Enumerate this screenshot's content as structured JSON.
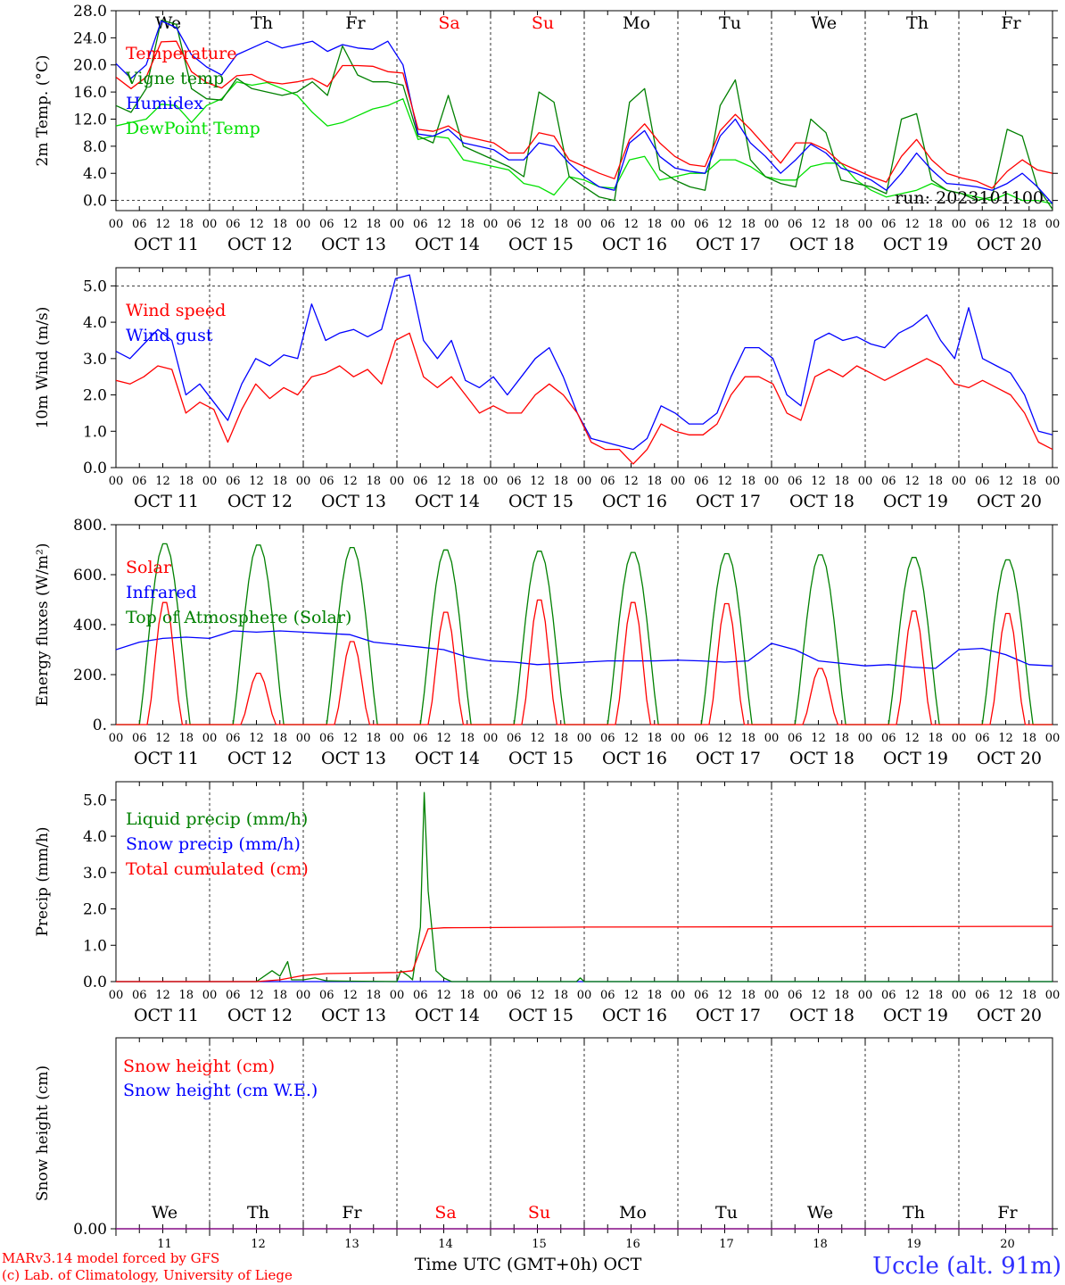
{
  "colors": {
    "red": "#ff0000",
    "dark_green": "#008000",
    "blue": "#0000ff",
    "light_green": "#00e000",
    "purple": "#800080",
    "site_blue": "#3030ff"
  },
  "days": [
    {
      "name": "We",
      "weekend": false,
      "date": "OCT 11",
      "num": "11"
    },
    {
      "name": "Th",
      "weekend": false,
      "date": "OCT 12",
      "num": "12"
    },
    {
      "name": "Fr",
      "weekend": false,
      "date": "OCT 13",
      "num": "13"
    },
    {
      "name": "Sa",
      "weekend": true,
      "date": "OCT 14",
      "num": "14"
    },
    {
      "name": "Su",
      "weekend": true,
      "date": "OCT 15",
      "num": "15"
    },
    {
      "name": "Mo",
      "weekend": false,
      "date": "OCT 16",
      "num": "16"
    },
    {
      "name": "Tu",
      "weekend": false,
      "date": "OCT 17",
      "num": "17"
    },
    {
      "name": "We",
      "weekend": false,
      "date": "OCT 18",
      "num": "18"
    },
    {
      "name": "Th",
      "weekend": false,
      "date": "OCT 19",
      "num": "19"
    },
    {
      "name": "Fr",
      "weekend": false,
      "date": "OCT 20",
      "num": "20"
    }
  ],
  "hour_ticks": [
    "00",
    "06",
    "12",
    "18"
  ],
  "final_hour_tick": "00",
  "chart_data": [
    {
      "type": "line",
      "ylabel": "2m Temp. (°C)",
      "ylim": [
        -1.5,
        28
      ],
      "yticks": [
        "0.0",
        "4.0",
        "8.0",
        "12.0",
        "16.0",
        "20.0",
        "24.0",
        "28.0"
      ],
      "ytick_values": [
        0,
        4,
        8,
        12,
        16,
        20,
        24,
        28
      ],
      "ref_line": 0,
      "annotation": "run: 2023101100",
      "x_unit_hours": 6,
      "series": [
        {
          "name": "Temperature",
          "color": "red",
          "values": [
            18.2,
            16.5,
            18.2,
            23.4,
            23.5,
            19,
            17.4,
            16.6,
            18.4,
            18.6,
            17.5,
            17.2,
            17.5,
            18,
            16.8,
            19.9,
            19.9,
            19.8,
            19,
            18.8,
            10.5,
            10.2,
            11,
            9.5,
            9,
            8.5,
            7,
            7,
            10,
            9.5,
            6,
            5,
            4,
            3.2,
            9,
            11.3,
            8.5,
            6.5,
            5.3,
            5,
            10.3,
            12.7,
            10.5,
            8,
            5.5,
            8.5,
            8.5,
            7.5,
            5.5,
            4.5,
            3.5,
            2.7,
            6.5,
            9,
            6,
            4,
            3.3,
            2.8,
            1.8,
            4.3,
            6,
            4.5,
            4
          ]
        },
        {
          "name": "Vigne temp",
          "color": "dark_green",
          "values": [
            14,
            13,
            16.5,
            26.6,
            26,
            16.5,
            15,
            14.8,
            18,
            16.5,
            16,
            15.5,
            16,
            17.5,
            15.5,
            22.8,
            18.5,
            17.5,
            17.5,
            17,
            9.5,
            8.5,
            15.5,
            8,
            7,
            6,
            5,
            3.5,
            16,
            14.5,
            3.5,
            2,
            0.5,
            0,
            14.5,
            16.5,
            4.5,
            3,
            2,
            1.5,
            14,
            17.8,
            6,
            3.5,
            2.5,
            2,
            12,
            10,
            3,
            2.5,
            2,
            1,
            12,
            12.8,
            3,
            1.5,
            1,
            0,
            0.5,
            10.5,
            9.5,
            2,
            -1.3
          ]
        },
        {
          "name": "Humidex",
          "color": "blue",
          "values": [
            20.2,
            18,
            20,
            26.5,
            25.5,
            21.5,
            19.7,
            18.5,
            21.5,
            22.5,
            23.5,
            22.5,
            23,
            23.5,
            22,
            23,
            22.5,
            22.3,
            23.5,
            20,
            9.8,
            9.5,
            10.5,
            8.5,
            8,
            7.5,
            6,
            6,
            8.5,
            8,
            5.5,
            3.5,
            2,
            1.5,
            8.5,
            10.3,
            6.5,
            4.8,
            4.3,
            4,
            9.5,
            12,
            8.5,
            6.5,
            4,
            6,
            8.3,
            7,
            4.8,
            4,
            3,
            1.5,
            4,
            7,
            4.5,
            2.5,
            2.3,
            2,
            1.5,
            2.5,
            4,
            2,
            -0.5
          ]
        },
        {
          "name": "DewPoint Temp",
          "color": "light_green",
          "values": [
            11,
            11.5,
            12,
            14.2,
            14,
            11.5,
            14,
            15,
            17.5,
            17,
            17.4,
            16.5,
            15.5,
            13,
            11,
            11.5,
            12.5,
            13.5,
            14,
            15,
            9,
            9.5,
            9.2,
            6,
            5.5,
            5,
            4.5,
            2.5,
            2,
            0.8,
            3.5,
            3,
            2,
            1.8,
            6,
            6.5,
            3,
            3.5,
            4,
            4,
            6,
            6,
            5,
            3.5,
            3,
            3,
            5,
            5.5,
            5.5,
            3,
            1.5,
            0.5,
            1,
            1.5,
            2.5,
            1.5,
            1,
            0.5,
            0,
            1,
            0,
            0,
            -0.5
          ]
        }
      ]
    },
    {
      "type": "line",
      "ylabel": "10m Wind (m/s)",
      "ylim": [
        0,
        5.5
      ],
      "yticks": [
        "0.0",
        "1.0",
        "2.0",
        "3.0",
        "4.0",
        "5.0"
      ],
      "ytick_values": [
        0,
        1,
        2,
        3,
        4,
        5
      ],
      "ref_line": 5,
      "x_unit_hours": 6,
      "series": [
        {
          "name": "Wind speed",
          "color": "red",
          "values": [
            2.4,
            2.3,
            2.5,
            2.8,
            2.7,
            1.5,
            1.8,
            1.6,
            0.7,
            1.6,
            2.3,
            1.9,
            2.2,
            2,
            2.5,
            2.6,
            2.8,
            2.5,
            2.7,
            2.3,
            3.5,
            3.7,
            2.5,
            2.2,
            2.5,
            2,
            1.5,
            1.7,
            1.5,
            1.5,
            2,
            2.3,
            2,
            1.5,
            0.7,
            0.5,
            0.5,
            0.1,
            0.5,
            1.2,
            1,
            0.9,
            0.9,
            1.2,
            2,
            2.5,
            2.5,
            2.3,
            1.5,
            1.3,
            2.5,
            2.7,
            2.5,
            2.8,
            2.6,
            2.4,
            2.6,
            2.8,
            3,
            2.8,
            2.3,
            2.2,
            2.4,
            2.2,
            2,
            1.5,
            0.7,
            0.5
          ]
        },
        {
          "name": "Wind gust",
          "color": "blue",
          "values": [
            3.2,
            3,
            3.4,
            3.8,
            3.5,
            2,
            2.3,
            1.8,
            1.3,
            2.3,
            3,
            2.8,
            3.1,
            3,
            4.5,
            3.5,
            3.7,
            3.8,
            3.6,
            3.8,
            5.2,
            5.3,
            3.5,
            3,
            3.5,
            2.4,
            2.2,
            2.5,
            2,
            2.5,
            3,
            3.3,
            2.5,
            1.5,
            0.8,
            0.7,
            0.6,
            0.5,
            0.8,
            1.7,
            1.5,
            1.2,
            1.2,
            1.5,
            2.5,
            3.3,
            3.3,
            3,
            2,
            1.7,
            3.5,
            3.7,
            3.5,
            3.6,
            3.4,
            3.3,
            3.7,
            3.9,
            4.2,
            3.5,
            3,
            4.4,
            3,
            2.8,
            2.6,
            2,
            1,
            0.9
          ]
        }
      ]
    },
    {
      "type": "line",
      "ylabel": "Energy fluxes (W/m²)",
      "ylim": [
        0,
        800
      ],
      "yticks": [
        "0.",
        "200.",
        "400.",
        "600.",
        "800."
      ],
      "ytick_values": [
        0,
        200,
        400,
        600,
        800
      ],
      "ref_line": null,
      "x_unit_hours": 1,
      "series": [
        {
          "name": "Solar",
          "color": "red",
          "peaks": [
            500,
            210,
            340,
            460,
            510,
            500,
            495,
            230,
            465,
            455
          ]
        },
        {
          "name": "Infrared",
          "color": "blue",
          "values": [
            300,
            330,
            345,
            350,
            345,
            375,
            370,
            375,
            370,
            365,
            360,
            330,
            320,
            310,
            300,
            270,
            255,
            250,
            240,
            245,
            250,
            255,
            255,
            255,
            258,
            255,
            250,
            255,
            325,
            300,
            255,
            245,
            235,
            240,
            230,
            225,
            300,
            305,
            280,
            240,
            235
          ]
        },
        {
          "name": "Top of Atmosphere (Solar)",
          "color": "dark_green",
          "peaks": [
            730,
            725,
            715,
            705,
            700,
            695,
            690,
            685,
            675,
            665
          ]
        }
      ]
    },
    {
      "type": "line",
      "ylabel": "Precip (mm/h)",
      "ylim": [
        0,
        5.5
      ],
      "yticks": [
        "0.0",
        "1.0",
        "2.0",
        "3.0",
        "4.0",
        "5.0"
      ],
      "ytick_values": [
        0,
        1,
        2,
        3,
        4,
        5
      ],
      "ref_line": null,
      "series": [
        {
          "name": "Liquid precip (mm/h)",
          "color": "dark_green",
          "points": [
            [
              0,
              0
            ],
            [
              36,
              0
            ],
            [
              40,
              0.3
            ],
            [
              42,
              0.15
            ],
            [
              44,
              0.55
            ],
            [
              45,
              0.05
            ],
            [
              48,
              0.05
            ],
            [
              51,
              0.1
            ],
            [
              54,
              0.02
            ],
            [
              72,
              0
            ],
            [
              73,
              0.3
            ],
            [
              75,
              0.15
            ],
            [
              76,
              0.05
            ],
            [
              78,
              1.5
            ],
            [
              79,
              5.2
            ],
            [
              80,
              2.5
            ],
            [
              82,
              0.3
            ],
            [
              84,
              0.1
            ],
            [
              86,
              0
            ],
            [
              118,
              0
            ],
            [
              119,
              0.1
            ],
            [
              120,
              0
            ],
            [
              240,
              0
            ]
          ]
        },
        {
          "name": "Snow precip (mm/h)",
          "color": "blue",
          "points": [
            [
              0,
              0
            ],
            [
              240,
              0
            ]
          ]
        },
        {
          "name": "Total cumulated (cm)",
          "color": "red",
          "points": [
            [
              0,
              0
            ],
            [
              36,
              0
            ],
            [
              42,
              0.05
            ],
            [
              48,
              0.17
            ],
            [
              54,
              0.22
            ],
            [
              72,
              0.25
            ],
            [
              76,
              0.3
            ],
            [
              80,
              1.45
            ],
            [
              84,
              1.48
            ],
            [
              120,
              1.5
            ],
            [
              240,
              1.52
            ]
          ]
        }
      ]
    },
    {
      "type": "line",
      "ylabel": "Snow height (cm)",
      "ylim": [
        0,
        1
      ],
      "yticks": [
        "0.00"
      ],
      "ytick_values": [
        0
      ],
      "ref_line": null,
      "series": [
        {
          "name": "Snow height (cm)",
          "color": "red",
          "points": [
            [
              0,
              0
            ],
            [
              240,
              0
            ]
          ]
        },
        {
          "name": "Snow height (cm W.E.)",
          "color": "blue",
          "points": [
            [
              0,
              0
            ],
            [
              240,
              0
            ]
          ]
        }
      ]
    }
  ],
  "footer": {
    "xlabel": "Time UTC (GMT+0h) OCT",
    "credit_line1": "MARv3.14 model forced by GFS",
    "credit_line2": "(c) Lab. of Climatology, University of Liege",
    "site": "Uccle (alt. 91m)"
  }
}
